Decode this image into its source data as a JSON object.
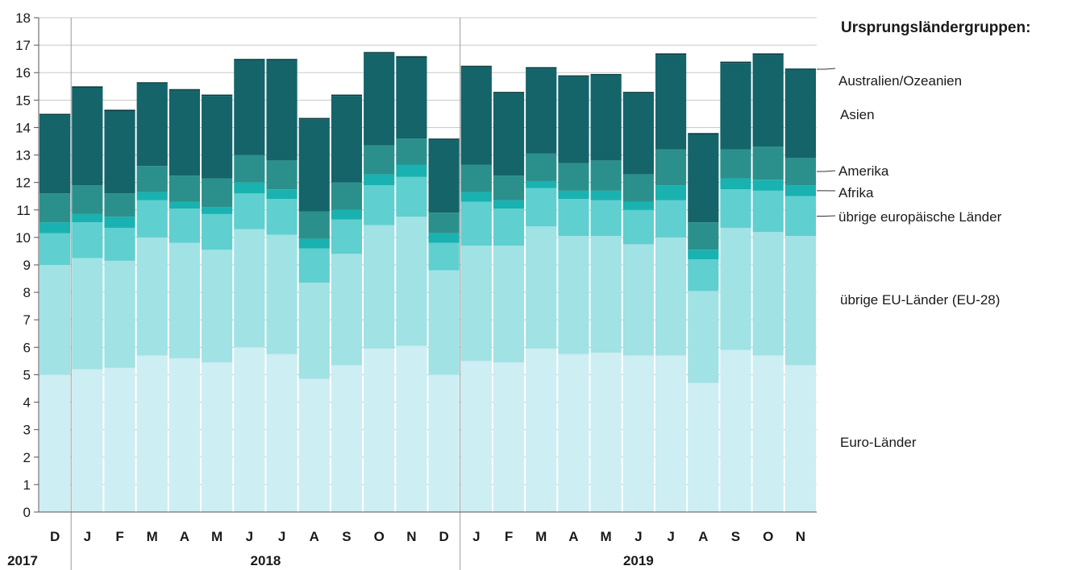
{
  "chart_data": {
    "type": "bar",
    "stacked": true,
    "legend_title": "Ursprungsländergruppen:",
    "legend_position": "right",
    "grid": true,
    "ylim": [
      0,
      18
    ],
    "yticks": [
      0,
      1,
      2,
      3,
      4,
      5,
      6,
      7,
      8,
      9,
      10,
      11,
      12,
      13,
      14,
      15,
      16,
      17,
      18
    ],
    "categories": [
      "D",
      "J",
      "F",
      "M",
      "A",
      "M",
      "J",
      "J",
      "A",
      "S",
      "O",
      "N",
      "D",
      "J",
      "F",
      "M",
      "A",
      "M",
      "J",
      "J",
      "A",
      "S",
      "O",
      "N"
    ],
    "year_groups": [
      {
        "label": "2017",
        "start": 0,
        "end": 0
      },
      {
        "label": "2018",
        "start": 1,
        "end": 12
      },
      {
        "label": "2019",
        "start": 13,
        "end": 23
      }
    ],
    "series": [
      {
        "name": "Euro-Länder",
        "color": "#cdeef3",
        "values": [
          5.0,
          5.2,
          5.25,
          5.7,
          5.6,
          5.45,
          6.0,
          5.75,
          4.85,
          5.35,
          5.95,
          6.05,
          5.0,
          5.5,
          5.45,
          5.95,
          5.75,
          5.8,
          5.7,
          5.7,
          4.7,
          5.9,
          5.7,
          5.35
        ]
      },
      {
        "name": "übrige EU-Länder (EU-28)",
        "color": "#a1e2e4",
        "values": [
          4.0,
          4.05,
          3.9,
          4.3,
          4.2,
          4.1,
          4.3,
          4.35,
          3.5,
          4.05,
          4.5,
          4.7,
          3.8,
          4.2,
          4.25,
          4.45,
          4.3,
          4.25,
          4.05,
          4.3,
          3.35,
          4.45,
          4.5,
          4.7
        ]
      },
      {
        "name": "übrige europäische Länder",
        "color": "#5fcfcf",
        "values": [
          1.15,
          1.3,
          1.2,
          1.35,
          1.25,
          1.3,
          1.3,
          1.3,
          1.25,
          1.25,
          1.45,
          1.45,
          1.0,
          1.6,
          1.35,
          1.4,
          1.35,
          1.3,
          1.25,
          1.35,
          1.15,
          1.4,
          1.5,
          1.45
        ]
      },
      {
        "name": "Afrika",
        "color": "#19b2b0",
        "values": [
          0.4,
          0.3,
          0.4,
          0.3,
          0.25,
          0.25,
          0.4,
          0.35,
          0.35,
          0.35,
          0.4,
          0.45,
          0.35,
          0.35,
          0.3,
          0.25,
          0.3,
          0.35,
          0.3,
          0.55,
          0.35,
          0.4,
          0.4,
          0.4
        ]
      },
      {
        "name": "Amerika",
        "color": "#2b908b",
        "values": [
          1.05,
          1.05,
          0.85,
          0.95,
          0.95,
          1.05,
          1.0,
          1.05,
          1.0,
          1.0,
          1.05,
          0.95,
          0.75,
          1.0,
          0.9,
          1.0,
          1.0,
          1.1,
          1.0,
          1.3,
          1.0,
          1.05,
          1.2,
          1.0
        ]
      },
      {
        "name": "Asien",
        "color": "#14646a",
        "values": [
          2.85,
          3.55,
          3.0,
          3.0,
          3.1,
          3.0,
          3.45,
          3.65,
          3.35,
          3.15,
          3.35,
          2.95,
          2.65,
          3.55,
          3.0,
          3.1,
          3.15,
          3.1,
          2.95,
          3.45,
          3.2,
          3.15,
          3.35,
          3.2
        ]
      },
      {
        "name": "Australien/Ozeanien",
        "color": "#0a3c40",
        "values": [
          0.05,
          0.05,
          0.05,
          0.05,
          0.05,
          0.05,
          0.05,
          0.05,
          0.05,
          0.05,
          0.05,
          0.05,
          0.05,
          0.05,
          0.05,
          0.05,
          0.05,
          0.05,
          0.05,
          0.05,
          0.05,
          0.05,
          0.05,
          0.05
        ]
      }
    ]
  }
}
